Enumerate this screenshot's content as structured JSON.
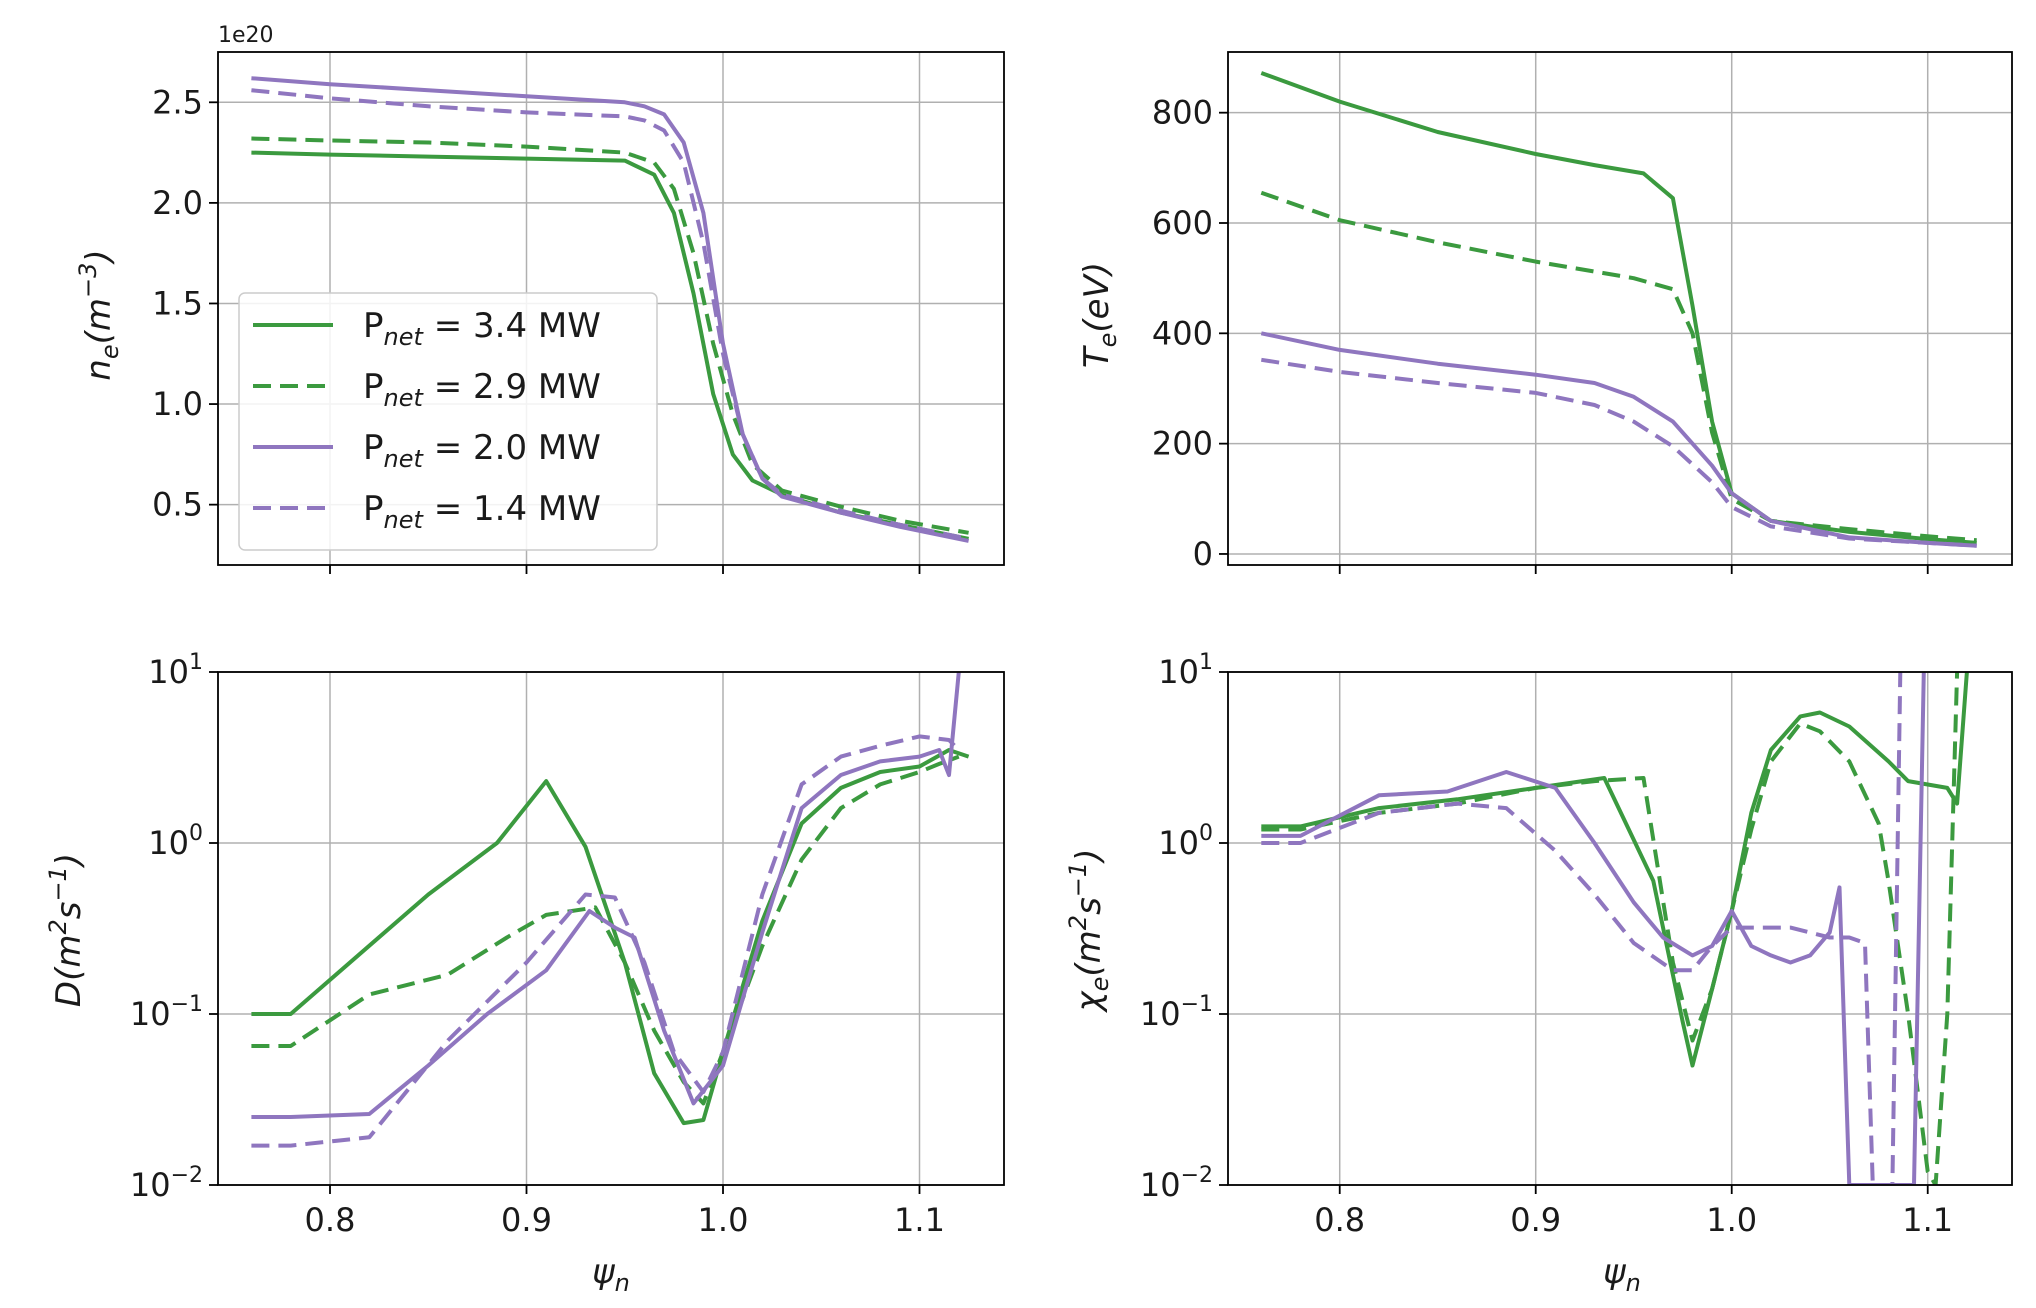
{
  "colors": {
    "green": "#3b9a3f",
    "purple": "#8f76bf",
    "grid": "#b0b0b0",
    "axis": "#000000"
  },
  "legend": {
    "placement": "center-left of top-left panel",
    "entries": [
      {
        "label_prefix": "P",
        "label_sub": "net",
        "label_value": " = 3.4 MW",
        "color": "green",
        "dash": "solid"
      },
      {
        "label_prefix": "P",
        "label_sub": "net",
        "label_value": " = 2.9 MW",
        "color": "green",
        "dash": "dashed"
      },
      {
        "label_prefix": "P",
        "label_sub": "net",
        "label_value": " = 2.0 MW",
        "color": "purple",
        "dash": "solid"
      },
      {
        "label_prefix": "P",
        "label_sub": "net",
        "label_value": " = 1.4 MW",
        "color": "purple",
        "dash": "dashed"
      }
    ]
  },
  "chart_data": [
    {
      "id": "ne",
      "type": "line",
      "scale": "linear",
      "offset_text": "1e20",
      "ylabel": {
        "main": "n",
        "sub": "e",
        "rest": "(m",
        "sup": "−3",
        "end": ")"
      },
      "xlabel": null,
      "xlim": [
        0.743,
        1.143
      ],
      "ylim": [
        0.2,
        2.75
      ],
      "yticks": [
        0.5,
        1.0,
        1.5,
        2.0,
        2.5
      ],
      "ytick_labels": [
        "0.5",
        "1.0",
        "1.5",
        "2.0",
        "2.5"
      ],
      "xticks": [
        0.8,
        0.9,
        1.0,
        1.1
      ],
      "xtick_labels": [],
      "series": [
        {
          "name": "P_net = 3.4 MW",
          "color": "green",
          "dash": "solid",
          "x": [
            0.76,
            0.8,
            0.85,
            0.9,
            0.95,
            0.965,
            0.975,
            0.985,
            0.995,
            1.005,
            1.015,
            1.03,
            1.06,
            1.09,
            1.125
          ],
          "y": [
            2.25,
            2.24,
            2.23,
            2.22,
            2.21,
            2.14,
            1.95,
            1.55,
            1.05,
            0.75,
            0.62,
            0.55,
            0.46,
            0.4,
            0.33
          ]
        },
        {
          "name": "P_net = 2.9 MW",
          "color": "green",
          "dash": "dashed",
          "x": [
            0.76,
            0.8,
            0.85,
            0.9,
            0.95,
            0.965,
            0.975,
            0.985,
            0.995,
            1.005,
            1.015,
            1.03,
            1.06,
            1.09,
            1.125
          ],
          "y": [
            2.32,
            2.31,
            2.3,
            2.28,
            2.25,
            2.2,
            2.07,
            1.75,
            1.3,
            0.95,
            0.7,
            0.57,
            0.49,
            0.42,
            0.36
          ]
        },
        {
          "name": "P_net = 2.0 MW",
          "color": "purple",
          "dash": "solid",
          "x": [
            0.76,
            0.8,
            0.85,
            0.9,
            0.95,
            0.96,
            0.97,
            0.98,
            0.99,
            1.0,
            1.01,
            1.02,
            1.03,
            1.06,
            1.09,
            1.125
          ],
          "y": [
            2.62,
            2.59,
            2.56,
            2.53,
            2.5,
            2.48,
            2.44,
            2.3,
            1.95,
            1.3,
            0.85,
            0.63,
            0.54,
            0.46,
            0.39,
            0.32
          ]
        },
        {
          "name": "P_net = 1.4 MW",
          "color": "purple",
          "dash": "dashed",
          "x": [
            0.76,
            0.8,
            0.85,
            0.9,
            0.95,
            0.96,
            0.97,
            0.98,
            0.99,
            1.0,
            1.01,
            1.02,
            1.03,
            1.06,
            1.09,
            1.125
          ],
          "y": [
            2.56,
            2.52,
            2.48,
            2.45,
            2.43,
            2.41,
            2.36,
            2.2,
            1.8,
            1.25,
            0.85,
            0.63,
            0.55,
            0.47,
            0.4,
            0.33
          ]
        }
      ]
    },
    {
      "id": "te",
      "type": "line",
      "scale": "linear",
      "offset_text": null,
      "ylabel": {
        "main": "T",
        "sub": "e",
        "rest": "(eV)",
        "sup": "",
        "end": ""
      },
      "xlabel": null,
      "xlim": [
        0.743,
        1.143
      ],
      "ylim": [
        -20,
        910
      ],
      "yticks": [
        0,
        200,
        400,
        600,
        800
      ],
      "ytick_labels": [
        "0",
        "200",
        "400",
        "600",
        "800"
      ],
      "xticks": [
        0.8,
        0.9,
        1.0,
        1.1
      ],
      "xtick_labels": [],
      "series": [
        {
          "name": "P_net = 3.4 MW",
          "color": "green",
          "dash": "solid",
          "x": [
            0.76,
            0.8,
            0.85,
            0.9,
            0.93,
            0.955,
            0.97,
            0.98,
            0.99,
            1.0,
            1.02,
            1.06,
            1.1,
            1.125
          ],
          "y": [
            872,
            820,
            765,
            725,
            705,
            690,
            645,
            450,
            240,
            110,
            60,
            40,
            27,
            20
          ]
        },
        {
          "name": "P_net = 2.9 MW",
          "color": "green",
          "dash": "dashed",
          "x": [
            0.76,
            0.8,
            0.85,
            0.9,
            0.95,
            0.97,
            0.98,
            0.99,
            1.0,
            1.02,
            1.06,
            1.1,
            1.125
          ],
          "y": [
            655,
            605,
            565,
            530,
            500,
            480,
            400,
            220,
            100,
            60,
            45,
            32,
            25
          ]
        },
        {
          "name": "P_net = 2.0 MW",
          "color": "purple",
          "dash": "solid",
          "x": [
            0.76,
            0.8,
            0.85,
            0.9,
            0.93,
            0.95,
            0.97,
            0.99,
            1.0,
            1.02,
            1.06,
            1.1,
            1.125
          ],
          "y": [
            400,
            370,
            345,
            325,
            310,
            285,
            240,
            160,
            110,
            60,
            30,
            20,
            15
          ]
        },
        {
          "name": "P_net = 1.4 MW",
          "color": "purple",
          "dash": "dashed",
          "x": [
            0.76,
            0.8,
            0.85,
            0.9,
            0.93,
            0.95,
            0.97,
            0.99,
            1.0,
            1.02,
            1.06,
            1.1,
            1.125
          ],
          "y": [
            352,
            330,
            310,
            292,
            270,
            240,
            195,
            130,
            85,
            50,
            28,
            20,
            15
          ]
        }
      ]
    },
    {
      "id": "d",
      "type": "line",
      "scale": "log",
      "offset_text": null,
      "ylabel": {
        "main": "D",
        "sub": "",
        "rest": "(m",
        "sup": "2",
        "end": "s",
        "sup2": "−1",
        "end2": ")"
      },
      "xlabel": {
        "main": "ψ",
        "sub": "n"
      },
      "xlim": [
        0.743,
        1.143
      ],
      "ylim": [
        0.01,
        10
      ],
      "yticks": [
        0.01,
        0.1,
        1,
        10
      ],
      "ytick_labels": [
        {
          "base": "10",
          "exp": "−2"
        },
        {
          "base": "10",
          "exp": "−1"
        },
        {
          "base": "10",
          "exp": "0"
        },
        {
          "base": "10",
          "exp": "1"
        }
      ],
      "xticks": [
        0.8,
        0.9,
        1.0,
        1.1
      ],
      "xtick_labels": [
        "0.8",
        "0.9",
        "1.0",
        "1.1"
      ],
      "series": [
        {
          "name": "P_net = 3.4 MW",
          "color": "green",
          "dash": "solid",
          "x": [
            0.76,
            0.78,
            0.85,
            0.885,
            0.91,
            0.93,
            0.95,
            0.965,
            0.98,
            0.99,
            1.0,
            1.02,
            1.04,
            1.06,
            1.08,
            1.1,
            1.115,
            1.125
          ],
          "y": [
            0.1,
            0.1,
            0.5,
            1.0,
            2.3,
            0.95,
            0.2,
            0.045,
            0.023,
            0.024,
            0.06,
            0.35,
            1.3,
            2.1,
            2.6,
            2.8,
            3.5,
            3.2
          ]
        },
        {
          "name": "P_net = 2.9 MW",
          "color": "green",
          "dash": "dashed",
          "x": [
            0.76,
            0.78,
            0.82,
            0.86,
            0.89,
            0.91,
            0.935,
            0.95,
            0.965,
            0.98,
            0.99,
            1.0,
            1.02,
            1.04,
            1.06,
            1.08,
            1.1,
            1.11,
            1.12
          ],
          "y": [
            0.065,
            0.065,
            0.13,
            0.17,
            0.28,
            0.38,
            0.42,
            0.2,
            0.08,
            0.04,
            0.03,
            0.06,
            0.25,
            0.8,
            1.6,
            2.2,
            2.6,
            2.9,
            3.2
          ]
        },
        {
          "name": "P_net = 2.0 MW",
          "color": "purple",
          "dash": "solid",
          "x": [
            0.76,
            0.78,
            0.82,
            0.85,
            0.88,
            0.91,
            0.932,
            0.945,
            0.955,
            0.97,
            0.985,
            1.0,
            1.02,
            1.04,
            1.06,
            1.08,
            1.1,
            1.11,
            1.115,
            1.12
          ],
          "y": [
            0.025,
            0.025,
            0.026,
            0.05,
            0.1,
            0.18,
            0.4,
            0.32,
            0.28,
            0.08,
            0.03,
            0.05,
            0.3,
            1.6,
            2.5,
            3.0,
            3.2,
            3.5,
            2.5,
            10
          ]
        },
        {
          "name": "P_net = 1.4 MW",
          "color": "purple",
          "dash": "dashed",
          "x": [
            0.76,
            0.78,
            0.82,
            0.86,
            0.9,
            0.93,
            0.945,
            0.96,
            0.975,
            0.99,
            1.0,
            1.02,
            1.04,
            1.06,
            1.08,
            1.1,
            1.115,
            1.12
          ],
          "y": [
            0.017,
            0.017,
            0.019,
            0.07,
            0.2,
            0.5,
            0.48,
            0.2,
            0.06,
            0.035,
            0.06,
            0.5,
            2.2,
            3.2,
            3.7,
            4.2,
            4.0,
            3.5
          ]
        }
      ]
    },
    {
      "id": "chi",
      "type": "line",
      "scale": "log",
      "offset_text": null,
      "ylabel": {
        "main": "χ",
        "sub": "e",
        "rest": "(m",
        "sup": "2",
        "end": "s",
        "sup2": "−1",
        "end2": ")"
      },
      "xlabel": {
        "main": "ψ",
        "sub": "n"
      },
      "xlim": [
        0.743,
        1.143
      ],
      "ylim": [
        0.01,
        10
      ],
      "yticks": [
        0.01,
        0.1,
        1,
        10
      ],
      "ytick_labels": [
        {
          "base": "10",
          "exp": "−2"
        },
        {
          "base": "10",
          "exp": "−1"
        },
        {
          "base": "10",
          "exp": "0"
        },
        {
          "base": "10",
          "exp": "1"
        }
      ],
      "xticks": [
        0.8,
        0.9,
        1.0,
        1.1
      ],
      "xtick_labels": [
        "0.8",
        "0.9",
        "1.0",
        "1.1"
      ],
      "series": [
        {
          "name": "P_net = 3.4 MW",
          "color": "green",
          "dash": "solid",
          "x": [
            0.76,
            0.78,
            0.82,
            0.86,
            0.9,
            0.935,
            0.96,
            0.975,
            0.98,
            0.99,
            1.0,
            1.01,
            1.02,
            1.035,
            1.045,
            1.06,
            1.08,
            1.09,
            1.11,
            1.115,
            1.12
          ],
          "y": [
            1.25,
            1.25,
            1.6,
            1.8,
            2.1,
            2.4,
            0.6,
            0.09,
            0.05,
            0.14,
            0.4,
            1.5,
            3.5,
            5.5,
            5.8,
            4.8,
            3.0,
            2.3,
            2.1,
            1.7,
            10
          ]
        },
        {
          "name": "P_net = 2.9 MW",
          "color": "green",
          "dash": "dashed",
          "x": [
            0.76,
            0.78,
            0.82,
            0.86,
            0.9,
            0.93,
            0.955,
            0.97,
            0.98,
            0.99,
            1.0,
            1.01,
            1.02,
            1.035,
            1.045,
            1.06,
            1.075,
            1.08,
            1.09,
            1.1,
            1.104,
            1.11,
            1.115
          ],
          "y": [
            1.2,
            1.2,
            1.5,
            1.7,
            2.1,
            2.3,
            2.4,
            0.2,
            0.07,
            0.14,
            0.4,
            1.2,
            3.0,
            5.0,
            4.5,
            3.0,
            1.3,
            0.6,
            0.1,
            0.012,
            0.01,
            0.1,
            10
          ]
        },
        {
          "name": "P_net = 2.0 MW",
          "color": "purple",
          "dash": "solid",
          "x": [
            0.76,
            0.78,
            0.82,
            0.855,
            0.885,
            0.91,
            0.93,
            0.95,
            0.965,
            0.98,
            0.99,
            1.0,
            1.01,
            1.02,
            1.03,
            1.04,
            1.05,
            1.055,
            1.06,
            1.07,
            1.08,
            1.093,
            1.098
          ],
          "y": [
            1.1,
            1.1,
            1.9,
            2.0,
            2.6,
            2.1,
            1.0,
            0.45,
            0.28,
            0.22,
            0.25,
            0.4,
            0.25,
            0.22,
            0.2,
            0.22,
            0.3,
            0.55,
            0.01,
            0.01,
            0.01,
            0.01,
            10
          ]
        },
        {
          "name": "P_net = 1.4 MW",
          "color": "purple",
          "dash": "dashed",
          "x": [
            0.76,
            0.78,
            0.82,
            0.86,
            0.885,
            0.91,
            0.93,
            0.95,
            0.97,
            0.98,
            0.99,
            1.0,
            1.01,
            1.03,
            1.05,
            1.06,
            1.068,
            1.072,
            1.082,
            1.086
          ],
          "y": [
            1.0,
            1.0,
            1.5,
            1.7,
            1.6,
            0.9,
            0.5,
            0.26,
            0.18,
            0.18,
            0.25,
            0.32,
            0.32,
            0.32,
            0.28,
            0.28,
            0.26,
            0.01,
            0.01,
            10
          ]
        }
      ]
    }
  ]
}
